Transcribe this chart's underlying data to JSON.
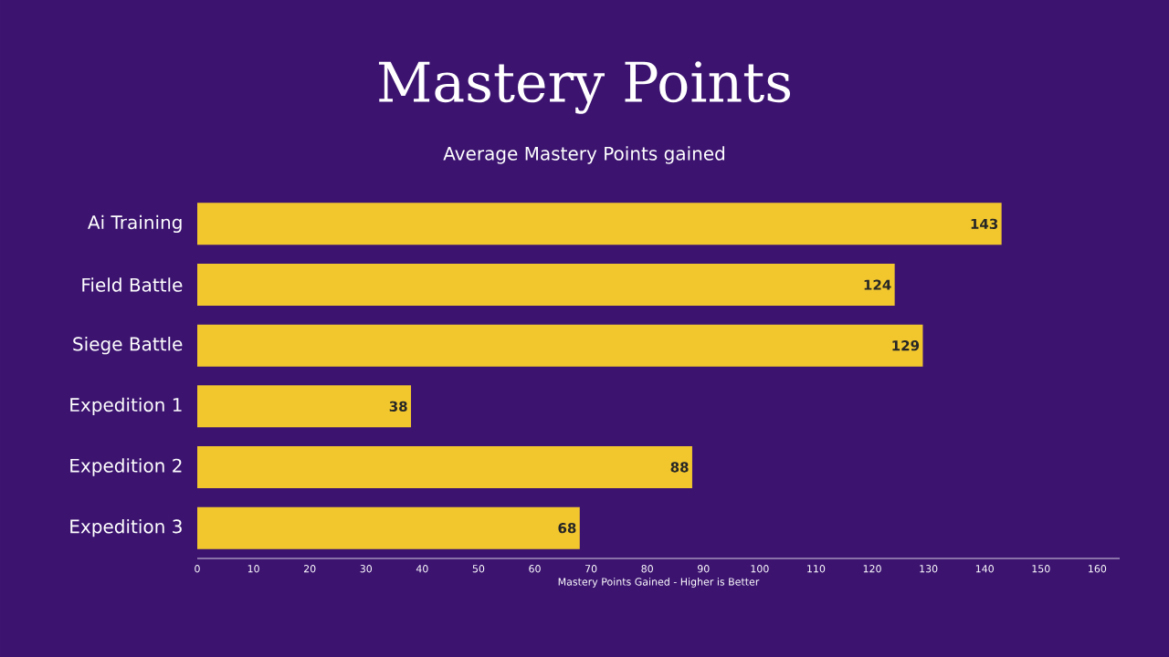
{
  "chart_data": {
    "type": "bar",
    "orientation": "horizontal",
    "title": "Mastery Points",
    "subtitle": "Average Mastery Points gained",
    "xlabel": "Mastery Points Gained - Higher is Better",
    "categories": [
      "Ai Training",
      "Field Battle",
      "Siege Battle",
      "Expedition 1",
      "Expedition 2",
      "Expedition 3"
    ],
    "values": [
      143,
      124,
      129,
      38,
      88,
      68
    ],
    "color": "#f2c72e",
    "data_labels": true,
    "xlim": [
      0,
      164
    ],
    "xticks": [
      0,
      10,
      20,
      30,
      40,
      50,
      60,
      70,
      80,
      90,
      100,
      110,
      120,
      130,
      140,
      150,
      160
    ],
    "grid": false
  }
}
